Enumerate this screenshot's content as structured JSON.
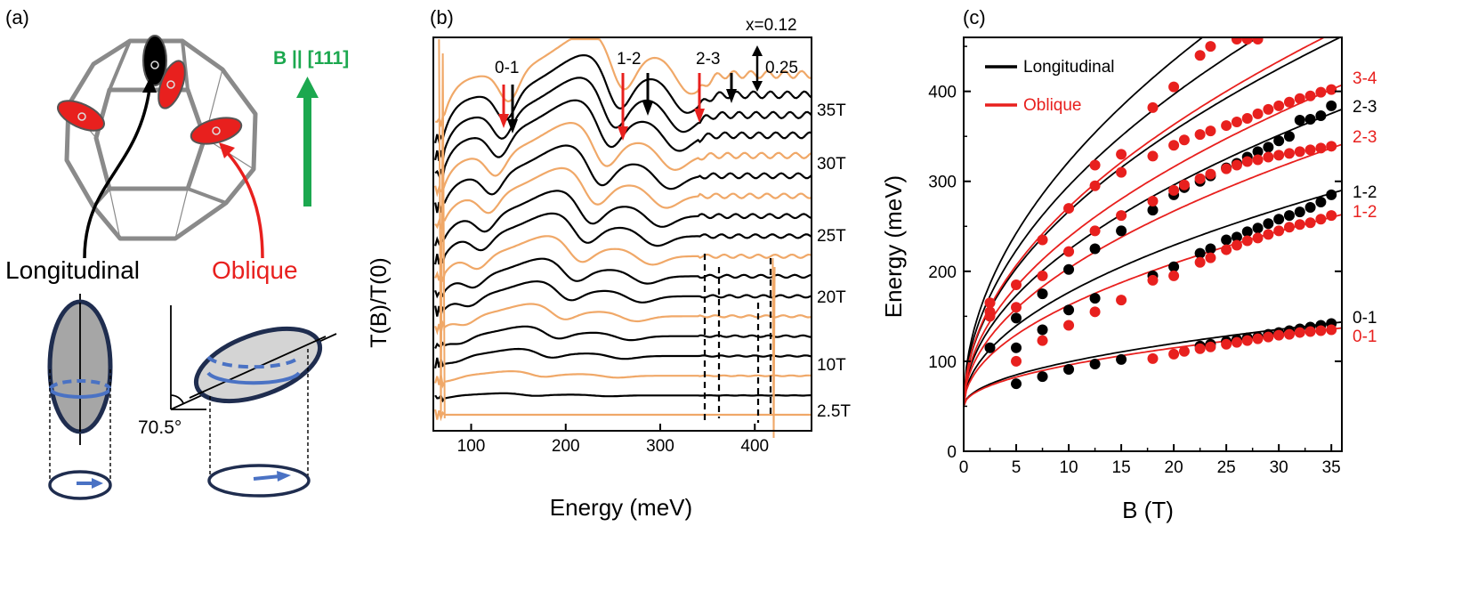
{
  "panel_a": {
    "label": "(a)",
    "field_label": "B || [111]",
    "longitudinal_label": "Longitudinal",
    "oblique_label": "Oblique",
    "angle_label": "70.5°",
    "colors": {
      "black": "#000000",
      "red": "#e8201e",
      "green": "#1ca84f",
      "blue": "#4a72c4",
      "navy": "#1f2d4f",
      "gray": "#8a8a8a"
    }
  },
  "panel_b": {
    "label": "(b)",
    "composition_label": "x=0.12",
    "scale_label": "0.25",
    "transition_labels": [
      "0-1",
      "1-2",
      "2-3"
    ],
    "field_labels": [
      "35T",
      "30T",
      "25T",
      "20T",
      "10T",
      "2.5T"
    ],
    "ylabel": "T(B)/T(0)",
    "xlabel": "Energy (meV)",
    "xticks": [
      100,
      200,
      300,
      400
    ],
    "colors": {
      "black_trace": "#000000",
      "orange_trace": "#f0a868",
      "arrow_red": "#e8201e"
    }
  },
  "panel_c": {
    "label": "(c)",
    "xlabel": "B (T)",
    "ylabel": "Energy (meV)",
    "legend": [
      {
        "name": "Longitudinal",
        "color": "#000000"
      },
      {
        "name": "Oblique",
        "color": "#e8201e"
      }
    ],
    "right_labels": [
      {
        "text": "3-4",
        "color": "#e8201e"
      },
      {
        "text": "2-3",
        "color": "#000000"
      },
      {
        "text": "2-3",
        "color": "#e8201e"
      },
      {
        "text": "1-2",
        "color": "#000000"
      },
      {
        "text": "1-2",
        "color": "#e8201e"
      },
      {
        "text": "0-1",
        "color": "#000000"
      },
      {
        "text": "0-1",
        "color": "#e8201e"
      }
    ]
  },
  "chart_data": {
    "type": "scatter",
    "title": "",
    "xlabel": "B (T)",
    "ylabel": "Energy (meV)",
    "xlim": [
      0,
      36
    ],
    "ylim": [
      0,
      460
    ],
    "xticks": [
      0,
      5,
      10,
      15,
      20,
      25,
      30,
      35
    ],
    "yticks": [
      0,
      100,
      200,
      300,
      400
    ],
    "legend_position": "top-left",
    "offset": 50,
    "series": [
      {
        "name": "0-1 (Longitudinal)",
        "color": "#000000",
        "k": 15.6,
        "points": [
          [
            5,
            75
          ],
          [
            7.5,
            83
          ],
          [
            10,
            91
          ],
          [
            12.5,
            97
          ],
          [
            15,
            102
          ],
          [
            22.5,
            117
          ],
          [
            23.5,
            119
          ],
          [
            25,
            122
          ],
          [
            26,
            124
          ],
          [
            27,
            126
          ],
          [
            28,
            127
          ],
          [
            29,
            130
          ],
          [
            30,
            132
          ],
          [
            31,
            134
          ],
          [
            32,
            136
          ],
          [
            33,
            138
          ],
          [
            34,
            140
          ],
          [
            35,
            142
          ]
        ]
      },
      {
        "name": "0-1 (Oblique)",
        "color": "#e8201e",
        "k": 14.5,
        "points": [
          [
            18,
            103
          ],
          [
            20,
            108
          ],
          [
            21,
            111
          ],
          [
            22.5,
            114
          ],
          [
            23.5,
            116
          ],
          [
            25,
            119
          ],
          [
            26,
            121
          ],
          [
            27,
            123
          ],
          [
            28,
            125
          ],
          [
            29,
            127
          ],
          [
            30,
            129
          ],
          [
            31,
            130
          ],
          [
            32,
            132
          ],
          [
            33,
            133
          ],
          [
            34,
            134
          ],
          [
            35,
            135
          ]
        ]
      },
      {
        "name": "1-2 (Longitudinal)",
        "color": "#000000",
        "k": 40.0,
        "points": [
          [
            5,
            115
          ],
          [
            7.5,
            135
          ],
          [
            10,
            157
          ],
          [
            12.5,
            170
          ],
          [
            18,
            195
          ],
          [
            20,
            205
          ],
          [
            22.5,
            220
          ],
          [
            23.5,
            225
          ],
          [
            25,
            235
          ],
          [
            26,
            238
          ],
          [
            27,
            244
          ],
          [
            28,
            248
          ],
          [
            29,
            253
          ],
          [
            30,
            258
          ],
          [
            31,
            262
          ],
          [
            32,
            266
          ],
          [
            33,
            271
          ],
          [
            34,
            277
          ],
          [
            35,
            285
          ]
        ]
      },
      {
        "name": "1-2 (Oblique)",
        "color": "#e8201e",
        "k": 35.5,
        "points": [
          [
            2.5,
            155
          ],
          [
            5,
            100
          ],
          [
            7.5,
            123
          ],
          [
            10,
            140
          ],
          [
            12.5,
            155
          ],
          [
            15,
            168
          ],
          [
            18,
            190
          ],
          [
            20,
            195
          ],
          [
            22.5,
            210
          ],
          [
            23.5,
            215
          ],
          [
            25,
            224
          ],
          [
            26,
            229
          ],
          [
            27,
            234
          ],
          [
            28,
            237
          ],
          [
            29,
            241
          ],
          [
            30,
            245
          ],
          [
            31,
            249
          ],
          [
            32,
            252
          ],
          [
            33,
            254
          ],
          [
            34,
            258
          ],
          [
            35,
            262
          ]
        ]
      },
      {
        "name": "2-3 (Longitudinal)",
        "color": "#000000",
        "k": 55.0,
        "points": [
          [
            2.5,
            115
          ],
          [
            5,
            148
          ],
          [
            7.5,
            175
          ],
          [
            10,
            202
          ],
          [
            12.5,
            225
          ],
          [
            15,
            245
          ],
          [
            18,
            268
          ],
          [
            20,
            285
          ],
          [
            21,
            293
          ],
          [
            22.5,
            300
          ],
          [
            23.5,
            306
          ],
          [
            25,
            315
          ],
          [
            26,
            320
          ],
          [
            27,
            327
          ],
          [
            28,
            333
          ],
          [
            29,
            338
          ],
          [
            30,
            345
          ],
          [
            31,
            350
          ],
          [
            32,
            368
          ],
          [
            33,
            369
          ],
          [
            34,
            373
          ],
          [
            35,
            384
          ]
        ]
      },
      {
        "name": "2-3 (Oblique)",
        "color": "#e8201e",
        "k": 48.5,
        "points": [
          [
            2.5,
            150
          ],
          [
            5,
            160
          ],
          [
            7.5,
            195
          ],
          [
            10,
            222
          ],
          [
            12.5,
            245
          ],
          [
            15,
            262
          ],
          [
            18,
            278
          ],
          [
            20,
            290
          ],
          [
            21,
            296
          ],
          [
            22.5,
            303
          ],
          [
            23.5,
            308
          ],
          [
            25,
            314
          ],
          [
            26,
            318
          ],
          [
            27,
            322
          ],
          [
            28,
            324
          ],
          [
            29,
            327
          ],
          [
            30,
            329
          ],
          [
            31,
            331
          ],
          [
            32,
            333
          ],
          [
            33,
            335
          ],
          [
            34,
            337
          ],
          [
            35,
            339
          ]
        ]
      },
      {
        "name": "3-4 (Oblique)",
        "color": "#e8201e",
        "k": 59.5,
        "points": [
          [
            2.5,
            165
          ],
          [
            5,
            185
          ],
          [
            7.5,
            235
          ],
          [
            10,
            270
          ],
          [
            12.5,
            295
          ],
          [
            15,
            310
          ],
          [
            18,
            328
          ],
          [
            20,
            340
          ],
          [
            21,
            346
          ],
          [
            22.5,
            352
          ],
          [
            23.5,
            356
          ],
          [
            25,
            362
          ],
          [
            26,
            366
          ],
          [
            27,
            370
          ],
          [
            28,
            375
          ],
          [
            29,
            380
          ],
          [
            30,
            384
          ],
          [
            31,
            388
          ],
          [
            32,
            392
          ],
          [
            33,
            395
          ],
          [
            34,
            399
          ],
          [
            35,
            402
          ]
        ]
      },
      {
        "name": "3-4 (Oblique) upper branch",
        "color": "#e8201e",
        "k": 70.0,
        "points": [
          [
            12.5,
            318
          ],
          [
            15,
            330
          ],
          [
            18,
            382
          ],
          [
            20,
            405
          ],
          [
            22.5,
            440
          ],
          [
            23.5,
            450
          ],
          [
            26,
            458
          ],
          [
            27,
            458
          ],
          [
            28,
            458
          ]
        ]
      }
    ],
    "extra_fit_lines": [
      {
        "name": "Longitudinal high 1",
        "color": "#000000",
        "k": 86.0
      },
      {
        "name": "Longitudinal high 2",
        "color": "#000000",
        "k": 77.5
      },
      {
        "name": "Longitudinal high 3",
        "color": "#000000",
        "k": 68.5
      }
    ]
  }
}
